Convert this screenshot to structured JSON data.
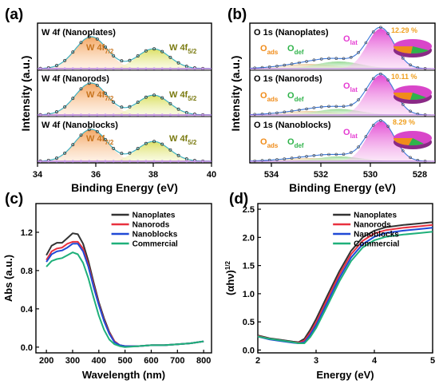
{
  "panels": {
    "a": {
      "label": "(a)",
      "ylabel": "Intensity (a.u.)",
      "xlabel": "Binding Energy (eV)",
      "xticks": [
        "34",
        "36",
        "38",
        "40"
      ],
      "rows": [
        {
          "title": "W 4f (Nanoplates)",
          "peak1": "W 4f",
          "peak1_sub": "7/2",
          "peak2": "W 4f",
          "peak2_sub": "5/2"
        },
        {
          "title": "W 4f (Nanorods)",
          "peak1": "W 4f",
          "peak1_sub": "7/2",
          "peak2": "W 4f",
          "peak2_sub": "5/2"
        },
        {
          "title": "W 4f (Nanoblocks)",
          "peak1": "W 4f",
          "peak1_sub": "7/2",
          "peak2": "W 4f",
          "peak2_sub": "5/2"
        }
      ]
    },
    "b": {
      "label": "(b)",
      "ylabel": "Intensity (a.u.)",
      "xlabel": "Binding Energy (eV)",
      "xticks": [
        "534",
        "532",
        "530",
        "528"
      ],
      "rows": [
        {
          "title": "O 1s (Nanoplates)",
          "pct": "12.29 %"
        },
        {
          "title": "O 1s (Nanorods)",
          "pct": "10.11 %"
        },
        {
          "title": "O 1s (Nanoblocks)",
          "pct": "8.29 %"
        }
      ],
      "o_ads": "O",
      "o_ads_sub": "ads",
      "o_def": "O",
      "o_def_sub": "def",
      "o_lat": "O",
      "o_lat_sub": "lat"
    },
    "c": {
      "label": "(c)"
    },
    "d": {
      "label": "(d)"
    }
  },
  "colors": {
    "nanoplates": "#333333",
    "nanorods": "#e8313f",
    "nanoblocks": "#1f49d6",
    "commercial": "#1fb07a",
    "w_peak1": "#f5a96b",
    "w_peak2": "#e3e67a",
    "o_lat": "#e53bd2",
    "o_def": "#2fb34a",
    "o_ads": "#f08c1a"
  },
  "chart_data": [
    {
      "type": "line",
      "panel": "c",
      "xlabel": "Wavelength (nm)",
      "ylabel": "Abs (a.u.)",
      "xlim": [
        160,
        830
      ],
      "ylim": [
        -0.06,
        1.5
      ],
      "xticks": [
        200,
        300,
        400,
        500,
        600,
        700,
        800
      ],
      "yticks": [
        0.0,
        0.4,
        0.8,
        1.2
      ],
      "ytick_labels": [
        "0.0",
        "0.4",
        "0.8",
        "1.2"
      ],
      "legend": "top-right",
      "x": [
        200,
        220,
        240,
        260,
        280,
        300,
        320,
        340,
        360,
        380,
        400,
        420,
        440,
        460,
        480,
        500,
        550,
        600,
        650,
        700,
        750,
        800
      ],
      "series": [
        {
          "name": "Nanoplates",
          "values": [
            0.96,
            1.06,
            1.09,
            1.09,
            1.14,
            1.19,
            1.18,
            1.08,
            0.9,
            0.68,
            0.47,
            0.3,
            0.16,
            0.06,
            0.02,
            0.01,
            0.01,
            0.02,
            0.02,
            0.03,
            0.04,
            0.06
          ]
        },
        {
          "name": "Nanorods",
          "values": [
            0.91,
            1.0,
            1.03,
            1.04,
            1.08,
            1.1,
            1.1,
            1.03,
            0.86,
            0.65,
            0.45,
            0.28,
            0.15,
            0.06,
            0.02,
            0.01,
            0.01,
            0.02,
            0.02,
            0.03,
            0.04,
            0.06
          ]
        },
        {
          "name": "Nanoblocks",
          "values": [
            0.89,
            0.97,
            1.0,
            1.01,
            1.04,
            1.08,
            1.08,
            1.0,
            0.84,
            0.63,
            0.44,
            0.27,
            0.14,
            0.05,
            0.02,
            0.01,
            0.01,
            0.02,
            0.02,
            0.03,
            0.04,
            0.06
          ]
        },
        {
          "name": "Commercial",
          "values": [
            0.84,
            0.9,
            0.92,
            0.93,
            0.96,
            0.99,
            0.97,
            0.88,
            0.72,
            0.52,
            0.33,
            0.18,
            0.08,
            0.03,
            0.01,
            0.0,
            0.01,
            0.02,
            0.02,
            0.03,
            0.04,
            0.06
          ]
        }
      ]
    },
    {
      "type": "line",
      "panel": "d",
      "xlabel": "Energy (eV)",
      "ylabel": "(αhν)",
      "ylabel_sup": "1/2",
      "xlim": [
        2,
        5
      ],
      "ylim": [
        -0.05,
        2.6
      ],
      "xticks": [
        2,
        3,
        4,
        5
      ],
      "yticks": [
        0.0,
        0.5,
        1.0,
        1.5,
        2.0,
        2.5
      ],
      "ytick_labels": [
        "0.0",
        "0.5",
        "1.0",
        "1.5",
        "2.0",
        "2.5"
      ],
      "legend": "top-right",
      "x": [
        2.0,
        2.2,
        2.4,
        2.6,
        2.7,
        2.8,
        2.9,
        3.0,
        3.2,
        3.4,
        3.6,
        3.8,
        4.0,
        4.2,
        4.5,
        4.8,
        5.0
      ],
      "series": [
        {
          "name": "Nanoplates",
          "values": [
            0.26,
            0.21,
            0.18,
            0.15,
            0.14,
            0.2,
            0.36,
            0.55,
            0.98,
            1.4,
            1.76,
            2.0,
            2.12,
            2.18,
            2.22,
            2.25,
            2.27
          ]
        },
        {
          "name": "Nanorods",
          "values": [
            0.25,
            0.2,
            0.17,
            0.14,
            0.13,
            0.17,
            0.31,
            0.49,
            0.92,
            1.34,
            1.7,
            1.94,
            2.07,
            2.13,
            2.17,
            2.2,
            2.22
          ]
        },
        {
          "name": "Nanoblocks",
          "values": [
            0.24,
            0.19,
            0.16,
            0.13,
            0.12,
            0.14,
            0.27,
            0.44,
            0.86,
            1.28,
            1.64,
            1.88,
            2.01,
            2.08,
            2.12,
            2.15,
            2.17
          ]
        },
        {
          "name": "Commercial",
          "values": [
            0.24,
            0.2,
            0.17,
            0.14,
            0.12,
            0.12,
            0.23,
            0.39,
            0.8,
            1.22,
            1.58,
            1.82,
            1.95,
            2.01,
            2.05,
            2.08,
            2.1
          ]
        }
      ]
    }
  ]
}
